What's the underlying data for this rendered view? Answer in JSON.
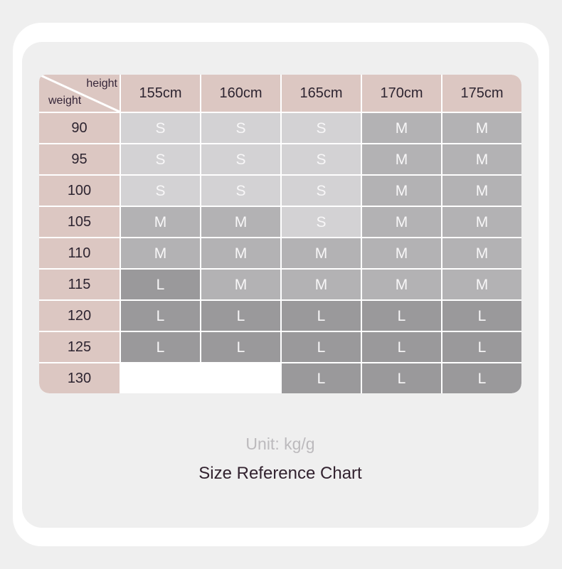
{
  "table": {
    "corner": {
      "top_label": "height",
      "bottom_label": "weight"
    },
    "col_headers": [
      "155cm",
      "160cm",
      "165cm",
      "170cm",
      "175cm"
    ],
    "rows": [
      {
        "weight": "90",
        "cells": [
          "S",
          "S",
          "S",
          "M",
          "M"
        ]
      },
      {
        "weight": "95",
        "cells": [
          "S",
          "S",
          "S",
          "M",
          "M"
        ]
      },
      {
        "weight": "100",
        "cells": [
          "S",
          "S",
          "S",
          "M",
          "M"
        ]
      },
      {
        "weight": "105",
        "cells": [
          "M",
          "M",
          "S",
          "M",
          "M"
        ]
      },
      {
        "weight": "110",
        "cells": [
          "M",
          "M",
          "M",
          "M",
          "M"
        ]
      },
      {
        "weight": "115",
        "cells": [
          "L",
          "M",
          "M",
          "M",
          "M"
        ]
      },
      {
        "weight": "120",
        "cells": [
          "L",
          "L",
          "L",
          "L",
          "L"
        ]
      },
      {
        "weight": "125",
        "cells": [
          "L",
          "L",
          "L",
          "L",
          "L"
        ]
      },
      {
        "weight": "130",
        "cells": [
          "",
          "",
          "L",
          "L",
          "L"
        ]
      }
    ]
  },
  "footer": {
    "unit_label": "Unit: kg/g",
    "title": "Size Reference Chart"
  },
  "colors": {
    "pink": "#dcc7c2",
    "size-S": "#d3d2d4",
    "size-M": "#b3b2b4",
    "size-L": "#9a999b",
    "blank": "#ffffff"
  },
  "chart_data": {
    "type": "table",
    "title": "Size Reference Chart",
    "unit": "Unit: kg/g",
    "x_axis_label": "height",
    "y_axis_label": "weight",
    "columns": [
      "155cm",
      "160cm",
      "165cm",
      "170cm",
      "175cm"
    ],
    "row_labels": [
      "90",
      "95",
      "100",
      "105",
      "110",
      "115",
      "120",
      "125",
      "130"
    ],
    "values": [
      [
        "S",
        "S",
        "S",
        "M",
        "M"
      ],
      [
        "S",
        "S",
        "S",
        "M",
        "M"
      ],
      [
        "S",
        "S",
        "S",
        "M",
        "M"
      ],
      [
        "M",
        "M",
        "S",
        "M",
        "M"
      ],
      [
        "M",
        "M",
        "M",
        "M",
        "M"
      ],
      [
        "L",
        "M",
        "M",
        "M",
        "M"
      ],
      [
        "L",
        "L",
        "L",
        "L",
        "L"
      ],
      [
        "L",
        "L",
        "L",
        "L",
        "L"
      ],
      [
        "",
        "",
        "L",
        "L",
        "L"
      ]
    ]
  }
}
